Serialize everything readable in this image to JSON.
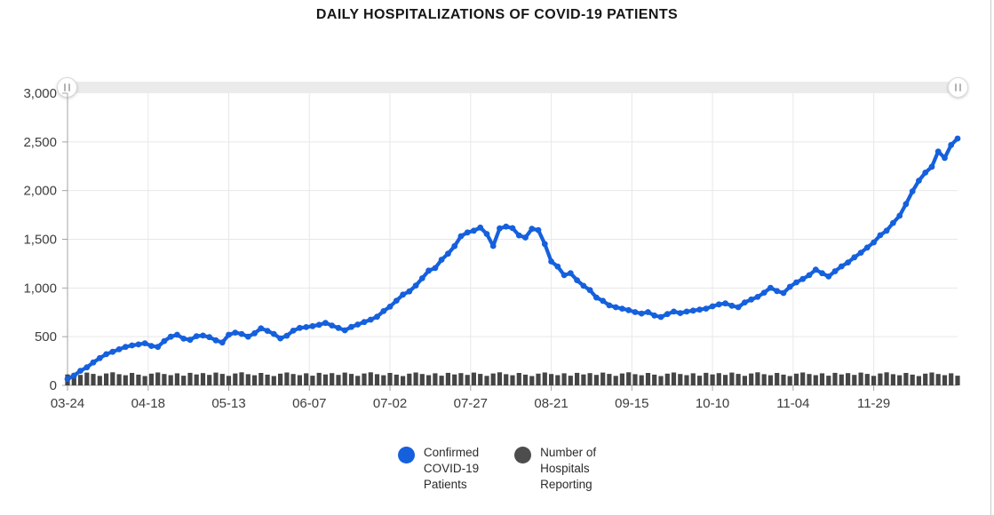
{
  "page": {
    "title": "DAILY HOSPITALIZATIONS OF COVID-19 PATIENTS"
  },
  "slider": {
    "start_grip": "||",
    "end_grip": "||"
  },
  "legend": {
    "items": [
      {
        "label": "Confirmed COVID-19 Patients",
        "lines": [
          "Confirmed",
          "COVID-19",
          "Patients"
        ],
        "color": "#1560dd"
      },
      {
        "label": "Number of Hospitals Reporting",
        "lines": [
          "Number of",
          "Hospitals",
          "Reporting"
        ],
        "color": "#4d4d4d"
      }
    ]
  },
  "chart_data": {
    "type": "line",
    "title": "DAILY HOSPITALIZATIONS OF COVID-19 PATIENTS",
    "xlabel": "",
    "ylabel": "",
    "grid": true,
    "legend_position": "bottom",
    "ylim": [
      0,
      3000
    ],
    "y_tick_values": [
      0,
      500,
      1000,
      1500,
      2000,
      2500,
      3000
    ],
    "y_tick_labels": [
      "0",
      "500",
      "1,000",
      "1,500",
      "2,000",
      "2,500",
      "3,000"
    ],
    "x_domain_days": [
      0,
      276
    ],
    "x_tick_days": [
      0,
      25,
      50,
      75,
      100,
      125,
      150,
      175,
      200,
      225,
      250
    ],
    "x_tick_labels": [
      "03-24",
      "04-18",
      "05-13",
      "06-07",
      "07-02",
      "07-27",
      "08-21",
      "09-15",
      "10-10",
      "11-04",
      "11-29"
    ],
    "colors": {
      "confirmed": "#1560dd",
      "hospitals": "#454545",
      "gridline": "#e8e8e8",
      "axis": "#a3a3a3"
    },
    "series": [
      {
        "name": "Confirmed COVID-19 Patients",
        "type": "line+markers",
        "color": "#1560dd",
        "start_day": 0,
        "step_days": 2,
        "values": [
          65,
          100,
          150,
          185,
          235,
          280,
          320,
          345,
          370,
          395,
          410,
          420,
          432,
          405,
          395,
          455,
          500,
          520,
          480,
          468,
          505,
          512,
          495,
          462,
          440,
          520,
          542,
          528,
          500,
          535,
          585,
          560,
          528,
          482,
          510,
          562,
          590,
          598,
          608,
          622,
          641,
          615,
          590,
          565,
          600,
          625,
          650,
          675,
          705,
          762,
          808,
          870,
          932,
          965,
          1025,
          1100,
          1178,
          1205,
          1290,
          1352,
          1430,
          1532,
          1570,
          1588,
          1620,
          1555,
          1432,
          1612,
          1630,
          1615,
          1540,
          1518,
          1608,
          1595,
          1452,
          1272,
          1220,
          1132,
          1152,
          1080,
          1022,
          978,
          902,
          868,
          822,
          802,
          788,
          772,
          752,
          738,
          752,
          718,
          702,
          732,
          758,
          742,
          758,
          768,
          778,
          788,
          812,
          832,
          842,
          818,
          802,
          852,
          882,
          908,
          952,
          1002,
          968,
          948,
          1012,
          1058,
          1092,
          1132,
          1188,
          1152,
          1118,
          1172,
          1222,
          1262,
          1315,
          1362,
          1415,
          1468,
          1542,
          1588,
          1668,
          1742,
          1862,
          1992,
          2102,
          2185,
          2245,
          2402,
          2335,
          2468,
          2535
        ]
      },
      {
        "name": "Number of Hospitals Reporting",
        "type": "bar",
        "color": "#454545",
        "start_day": 0,
        "step_days": 2,
        "values": [
          112,
          126,
          108,
          131,
          118,
          98,
          122,
          134,
          115,
          104,
          128,
          110,
          96,
          120,
          132,
          117,
          105,
          124,
          99,
          129,
          112,
          126,
          108,
          131,
          118,
          98,
          122,
          134,
          115,
          104,
          128,
          110,
          96,
          120,
          132,
          117,
          105,
          124,
          99,
          129,
          112,
          126,
          108,
          131,
          118,
          98,
          122,
          134,
          115,
          104,
          128,
          110,
          96,
          120,
          132,
          117,
          105,
          124,
          99,
          129,
          112,
          126,
          108,
          131,
          118,
          98,
          122,
          134,
          115,
          104,
          128,
          110,
          96,
          120,
          132,
          117,
          105,
          124,
          99,
          129,
          112,
          126,
          108,
          131,
          118,
          98,
          122,
          134,
          115,
          104,
          128,
          110,
          96,
          120,
          132,
          117,
          105,
          124,
          99,
          129,
          112,
          126,
          108,
          131,
          118,
          98,
          122,
          134,
          115,
          104,
          128,
          110,
          96,
          120,
          132,
          117,
          105,
          124,
          99,
          129,
          112,
          126,
          108,
          131,
          118,
          98,
          122,
          134,
          115,
          104,
          128,
          110,
          96,
          120,
          132,
          117,
          105,
          124,
          99
        ]
      }
    ]
  }
}
